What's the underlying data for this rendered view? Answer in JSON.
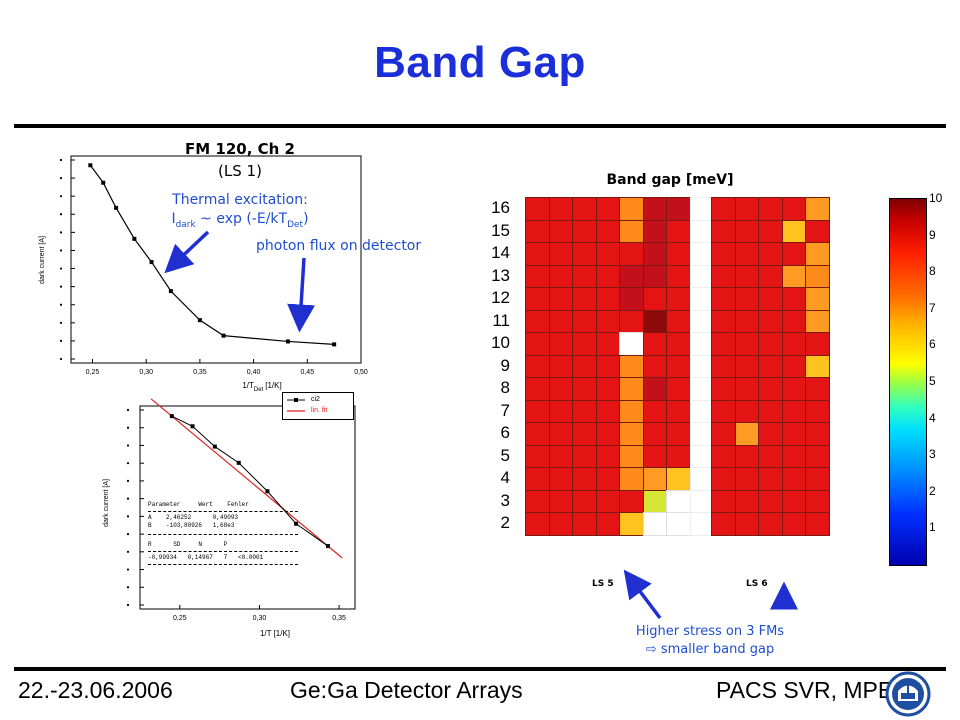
{
  "slide": {
    "title": "Band Gap",
    "footer_left": "22.-23.06.2006",
    "footer_center": "Ge:Ga Detector Arrays",
    "footer_right": "PACS SVR, MPE"
  },
  "left_panel": {
    "caption_line1": "FM 120, Ch 2",
    "caption_line2": "(LS 1)",
    "annotation_thermal_line1": "Thermal excitation:",
    "annotation_thermal_line2_a": "I",
    "annotation_thermal_line2_sub": "dark",
    "annotation_thermal_line2_b": " ~ exp (-E/kT",
    "annotation_thermal_line2_sub2": "Det",
    "annotation_thermal_line2_c": ")",
    "annotation_photon": "photon flux on detector",
    "top_chart": {
      "type": "line",
      "ylabel": "dark current [A]",
      "xlabel": "1/T",
      "xlabel_sub": "Det",
      "xlabel_unit": "[1/K]",
      "x_ticks": [
        "0,25",
        "0,30",
        "0,35",
        "0,40",
        "0,45",
        "0,50"
      ],
      "xlim": [
        0.23,
        0.5
      ],
      "points": [
        {
          "x": 0.248,
          "y": 1.0
        },
        {
          "x": 0.26,
          "y": 0.91
        },
        {
          "x": 0.272,
          "y": 0.78
        },
        {
          "x": 0.289,
          "y": 0.62
        },
        {
          "x": 0.305,
          "y": 0.5
        },
        {
          "x": 0.323,
          "y": 0.35
        },
        {
          "x": 0.35,
          "y": 0.2
        },
        {
          "x": 0.372,
          "y": 0.12
        },
        {
          "x": 0.432,
          "y": 0.09
        },
        {
          "x": 0.475,
          "y": 0.075
        }
      ]
    },
    "bottom_chart": {
      "type": "scatter",
      "ylabel": "dark current [A]",
      "xlabel": "1/T",
      "xlabel_unit": "[1/K]",
      "x_ticks": [
        "0,25",
        "0,30",
        "0,35"
      ],
      "xlim": [
        0.225,
        0.36
      ],
      "legend": [
        "ci2",
        "lin. fit"
      ],
      "points": [
        {
          "x": 0.245,
          "y": 0.95
        },
        {
          "x": 0.258,
          "y": 0.9
        },
        {
          "x": 0.272,
          "y": 0.8
        },
        {
          "x": 0.287,
          "y": 0.72
        },
        {
          "x": 0.305,
          "y": 0.58
        },
        {
          "x": 0.323,
          "y": 0.42
        },
        {
          "x": 0.343,
          "y": 0.31
        }
      ],
      "fit_table": {
        "header1": "Parameter     Wert    Fehler",
        "row_a": "A    2,46252      0,49093",
        "row_b": "B    -103,80926   1,68e3",
        "header2": "R      SD     N      P",
        "row_r": "-0,99934   0,14967   7   <0.0001"
      }
    }
  },
  "heatmap": {
    "title": "Band gap [meV]",
    "row_labels": [
      "16",
      "15",
      "14",
      "13",
      "12",
      "11",
      "10",
      "9",
      "8",
      "7",
      "6",
      "5",
      "4",
      "3",
      "2"
    ],
    "ls5_label": "LS 5",
    "ls6_label": "LS 6",
    "colorbar_ticks": [
      "10",
      "9",
      "8",
      "7",
      "6",
      "5",
      "4",
      "3",
      "2",
      "1"
    ],
    "colorbar_range": [
      0,
      10
    ],
    "colors": {
      "R": "#e51414",
      "D": "#c4101a",
      "K": "#8e0a0a",
      "O": "#ff8a1c",
      "L": "#ff9a22",
      "Y": "#ffc21e",
      "G": "#d6e636",
      "W": "#ffffff"
    },
    "grid_left": [
      "RRRROD",
      "RRRROD",
      "RRRRRD",
      "RRRRDD",
      "RRRRDR",
      "RRRRRK",
      "RRRRWR",
      "RRRROR",
      "RRRROD",
      "RRRROR",
      "RRRROR",
      "RRRROR",
      "RRRROL",
      "RRRRRG",
      "RRRRYW"
    ],
    "grid_left_extra": [
      "D",
      "R",
      "R",
      "R",
      "R",
      "R",
      "R",
      "R",
      "R",
      "R",
      "R",
      "R",
      "Y",
      "W",
      "W"
    ],
    "grid_right": [
      "RRRRL",
      "RRRYR",
      "RRRRL",
      "RRRLO",
      "RRRRL",
      "RRRRL",
      "RRRRR",
      "RRRRY",
      "RRRRR",
      "RRRRR",
      "RLRRR",
      "RRRRR",
      "RRRRR",
      "RRRRR",
      "RRRRR"
    ],
    "annotation_line1": "Higher stress on 3 FMs",
    "annotation_line2": "smaller band gap",
    "annotation_arrow_glyph": "⇨"
  }
}
